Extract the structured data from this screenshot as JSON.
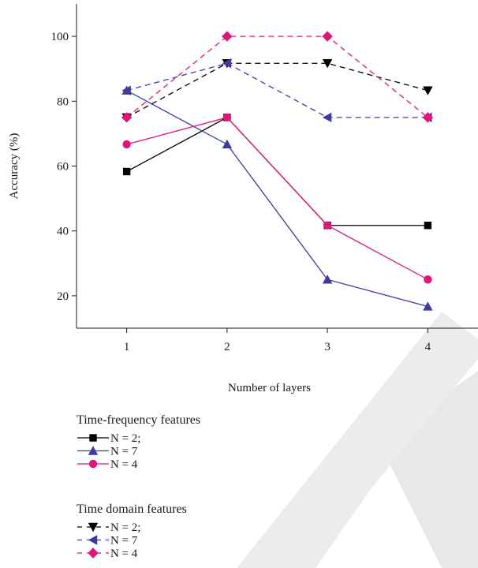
{
  "chart_data": {
    "type": "line",
    "xlabel": "Number of layers",
    "ylabel": "Accuracy (%)",
    "x": [
      1,
      2,
      3,
      4
    ],
    "xlim": [
      0.5,
      4.5
    ],
    "ylim": [
      10,
      110
    ],
    "yticks": [
      20,
      40,
      60,
      80,
      100
    ],
    "grid": false,
    "legend_position": "below",
    "series": [
      {
        "name": "N = 2;",
        "group": "Time-frequency features",
        "values": [
          58.3,
          75.0,
          41.7,
          41.7
        ],
        "color": "#000000",
        "dash": "solid",
        "marker": "square"
      },
      {
        "name": "N = 7",
        "group": "Time-frequency features",
        "values": [
          83.3,
          66.7,
          25.0,
          16.7
        ],
        "color": "#3b3ba0",
        "dash": "solid",
        "marker": "triangle-up"
      },
      {
        "name": "N = 4",
        "group": "Time-frequency features",
        "values": [
          66.7,
          75.0,
          41.7,
          25.0
        ],
        "color": "#e0157a",
        "dash": "solid",
        "marker": "circle"
      },
      {
        "name": "N = 2;",
        "group": "Time domain features",
        "values": [
          75.0,
          91.7,
          91.7,
          83.3
        ],
        "color": "#000000",
        "dash": "dashed",
        "marker": "triangle-down"
      },
      {
        "name": "N = 7",
        "group": "Time domain features",
        "values": [
          83.3,
          91.7,
          75.0,
          75.0
        ],
        "color": "#3b3ba0",
        "dash": "dashed",
        "marker": "triangle-left"
      },
      {
        "name": "N = 4",
        "group": "Time domain features",
        "values": [
          75.0,
          100.0,
          100.0,
          75.0
        ],
        "color": "#e0157a",
        "dash": "dashed",
        "marker": "diamond"
      }
    ],
    "legend_groups": [
      "Time-frequency features",
      "Time domain features"
    ]
  }
}
